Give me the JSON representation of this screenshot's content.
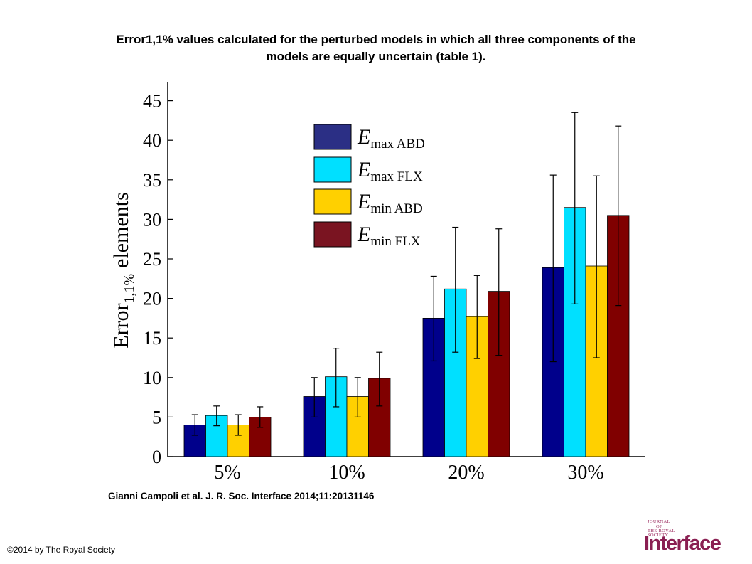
{
  "title_lines": [
    "Error1,1% values calculated for the perturbed models in which all three components of the",
    "models are equally uncertain (table 1)."
  ],
  "citation": "Gianni Campoli et al. J. R. Soc. Interface 2014;11:20131146",
  "copyright": "©2014 by The Royal Society",
  "logo": {
    "line1": "JOURNAL",
    "line2": "OF",
    "line3": "THE ROYAL",
    "line4": "SOCIETY",
    "word": "Interface",
    "color": "#8a1f52"
  },
  "chart_data": {
    "type": "bar",
    "categories": [
      "5%",
      "10%",
      "20%",
      "30%"
    ],
    "ylabel_main": "Error",
    "ylabel_sub": "1,1%",
    "ylabel_tail": "elements",
    "xlabel": "",
    "ylim": [
      0,
      47
    ],
    "yticks": [
      0,
      5,
      10,
      15,
      20,
      25,
      30,
      35,
      40,
      45
    ],
    "legend_position": "top-center",
    "series": [
      {
        "name_main": "E",
        "name_sub": "max ABD",
        "color": "#00008b",
        "values": [
          4.0,
          7.6,
          17.5,
          23.9
        ],
        "err_low": [
          2.7,
          5.0,
          12.1,
          12.0
        ],
        "err_high": [
          5.3,
          10.0,
          22.8,
          35.6
        ]
      },
      {
        "name_main": "E",
        "name_sub": "max FLX",
        "color": "#00e0ff",
        "values": [
          5.2,
          10.1,
          21.2,
          31.5
        ],
        "err_low": [
          3.9,
          6.3,
          13.2,
          19.3
        ],
        "err_high": [
          6.4,
          13.7,
          29.0,
          43.5
        ]
      },
      {
        "name_main": "E",
        "name_sub": "min ABD",
        "color": "#ffd000",
        "values": [
          4.0,
          7.6,
          17.7,
          24.1
        ],
        "err_low": [
          2.7,
          5.0,
          12.4,
          12.5
        ],
        "err_high": [
          5.3,
          10.0,
          22.9,
          35.5
        ]
      },
      {
        "name_main": "E",
        "name_sub": "min FLX",
        "color": "#800000",
        "values": [
          5.0,
          9.9,
          20.9,
          30.5
        ],
        "err_low": [
          3.7,
          6.4,
          12.8,
          19.1
        ],
        "err_high": [
          6.3,
          13.2,
          28.8,
          41.8
        ]
      }
    ]
  }
}
